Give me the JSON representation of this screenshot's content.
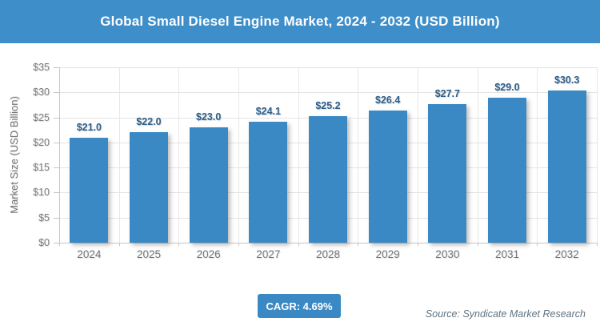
{
  "title": "Global Small Diesel Engine Market, 2024 - 2032 (USD Billion)",
  "chart_data": {
    "type": "bar",
    "title": "Global Small Diesel Engine Market, 2024 - 2032 (USD Billion)",
    "categories": [
      "2024",
      "2025",
      "2026",
      "2027",
      "2028",
      "2029",
      "2030",
      "2031",
      "2032"
    ],
    "values": [
      21.0,
      22.0,
      23.0,
      24.1,
      25.2,
      26.4,
      27.7,
      29.0,
      30.3
    ],
    "bar_labels": [
      "$21.0",
      "$22.0",
      "$23.0",
      "$24.1",
      "$25.2",
      "$26.4",
      "$27.7",
      "$29.0",
      "$30.3"
    ],
    "xlabel": "",
    "ylabel": "Market Size (USD Billion)",
    "ylim": [
      0,
      35
    ],
    "ytick_step": 5,
    "ytick_labels": [
      "$0",
      "$5",
      "$10",
      "$15",
      "$20",
      "$25",
      "$30",
      "$35"
    ],
    "grid": "horizontal-and-vertical",
    "legend": "none",
    "bar_color": "#3a89c4",
    "bar_label_color": "#2d5f8c"
  },
  "footer": {
    "cagr_label": "CAGR: 4.69%",
    "source": "Source: Syndicate Market Research"
  },
  "colors": {
    "header_bg": "#3d8ec9",
    "header_text": "#ffffff",
    "axis_text": "#767676",
    "gridline": "#e4e4e4",
    "axis_line": "#c6c6c6",
    "badge_bg": "#3a89c4",
    "source_text": "#5e7382"
  }
}
